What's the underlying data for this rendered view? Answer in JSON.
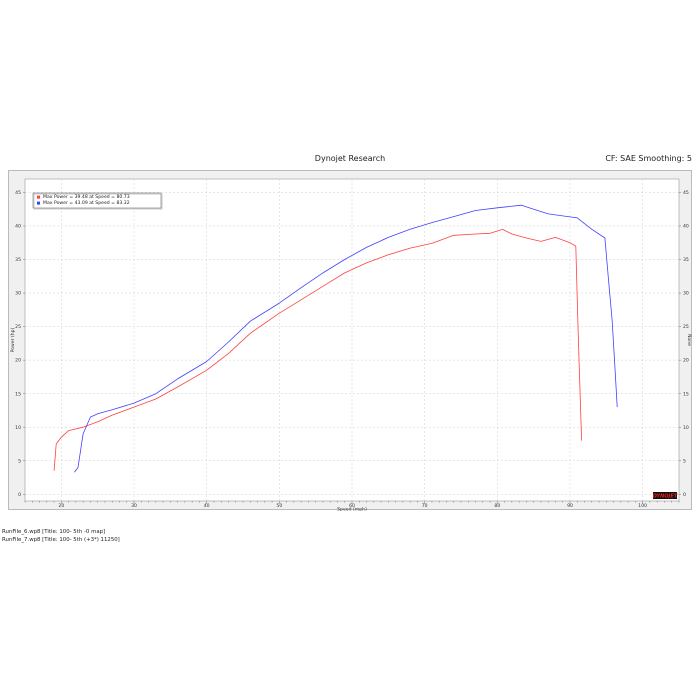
{
  "header": {
    "title": "Dynojet Research",
    "correction": "CF: SAE Smoothing: 5"
  },
  "files": [
    "RunFile_6.wp8 [Title: 100- 5th -0 map]",
    "RunFile_7.wp8 [Title: 100- 5th (+3*) 11250]"
  ],
  "logo_text": "DYNOJET",
  "chart_data": {
    "type": "line",
    "title": "",
    "xlabel": "Speed (mph)",
    "ylabel": "Power (hp)",
    "ylabel_right": "None",
    "xlim": [
      15,
      105
    ],
    "ylim": [
      -1,
      47
    ],
    "x_ticks": [
      20,
      30,
      40,
      50,
      60,
      70,
      80,
      90,
      100
    ],
    "y_ticks": [
      0,
      5,
      10,
      15,
      20,
      25,
      30,
      35,
      40,
      45
    ],
    "grid": true,
    "legend_position": "top-left",
    "series": [
      {
        "name": "Max Power = 39.48 at Speed = 80.73",
        "color": "#ff4040",
        "points": [
          [
            19.0,
            3.5
          ],
          [
            19.3,
            7.5
          ],
          [
            20,
            8.5
          ],
          [
            21,
            9.5
          ],
          [
            23,
            10.0
          ],
          [
            25,
            10.8
          ],
          [
            27,
            11.8
          ],
          [
            30,
            13.0
          ],
          [
            33,
            14.2
          ],
          [
            36,
            16.0
          ],
          [
            40,
            18.5
          ],
          [
            43,
            21.0
          ],
          [
            46,
            24.0
          ],
          [
            50,
            27.0
          ],
          [
            53,
            29.0
          ],
          [
            56,
            31.0
          ],
          [
            59,
            33.0
          ],
          [
            62,
            34.5
          ],
          [
            65,
            35.7
          ],
          [
            68,
            36.7
          ],
          [
            71,
            37.4
          ],
          [
            74,
            38.6
          ],
          [
            77,
            38.8
          ],
          [
            79,
            38.9
          ],
          [
            80.73,
            39.48
          ],
          [
            82,
            38.8
          ],
          [
            84,
            38.2
          ],
          [
            86,
            37.7
          ],
          [
            88,
            38.3
          ],
          [
            90,
            37.5
          ],
          [
            90.8,
            37.0
          ],
          [
            91.1,
            25.0
          ],
          [
            91.4,
            14.5
          ],
          [
            91.6,
            8.0
          ]
        ]
      },
      {
        "name": "Max Power = 43.09 at Speed = 83.32",
        "color": "#4040ff",
        "points": [
          [
            21.8,
            3.3
          ],
          [
            22.3,
            4.0
          ],
          [
            23,
            9.0
          ],
          [
            24,
            11.5
          ],
          [
            25,
            12.0
          ],
          [
            27,
            12.6
          ],
          [
            30,
            13.6
          ],
          [
            33,
            15.0
          ],
          [
            36,
            17.2
          ],
          [
            40,
            19.8
          ],
          [
            43,
            22.7
          ],
          [
            46,
            25.8
          ],
          [
            50,
            28.5
          ],
          [
            53,
            30.8
          ],
          [
            56,
            33.0
          ],
          [
            59,
            35.0
          ],
          [
            62,
            36.8
          ],
          [
            65,
            38.3
          ],
          [
            68,
            39.5
          ],
          [
            71,
            40.5
          ],
          [
            74,
            41.4
          ],
          [
            77,
            42.3
          ],
          [
            80,
            42.7
          ],
          [
            83.32,
            43.09
          ],
          [
            85,
            42.5
          ],
          [
            87,
            41.8
          ],
          [
            89,
            41.5
          ],
          [
            91,
            41.2
          ],
          [
            93,
            39.5
          ],
          [
            94.8,
            38.2
          ],
          [
            95.3,
            32.0
          ],
          [
            95.8,
            26.0
          ],
          [
            96.2,
            18.5
          ],
          [
            96.5,
            13.0
          ]
        ]
      }
    ]
  }
}
